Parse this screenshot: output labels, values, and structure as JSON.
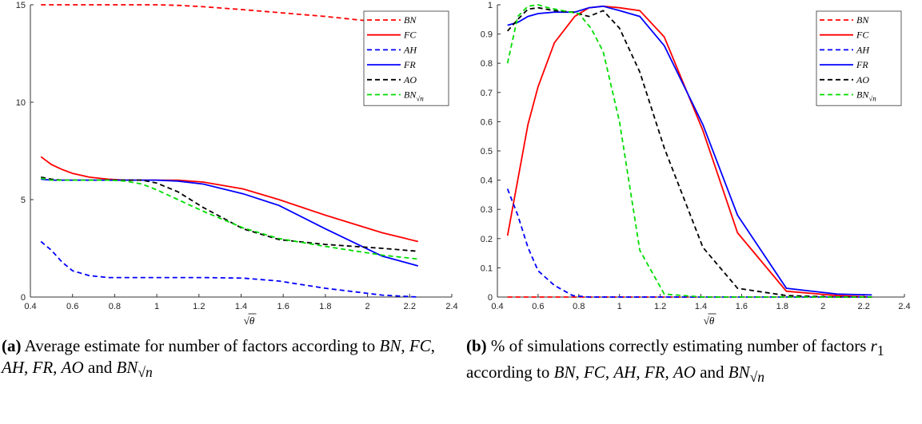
{
  "chart_data": [
    {
      "type": "line",
      "xlabel": "√θ",
      "ylabel": "",
      "xlim": [
        0.4,
        2.4
      ],
      "ylim": [
        0,
        15
      ],
      "xticks": [
        "0.4",
        "0.6",
        "0.8",
        "1",
        "1.2",
        "1.4",
        "1.6",
        "1.8",
        "2",
        "2.2",
        "2.4"
      ],
      "yticks": [
        "0",
        "5",
        "10",
        "15"
      ],
      "legend_position": "top-right",
      "grid": false,
      "x": [
        0.45,
        0.5,
        0.55,
        0.6,
        0.68,
        0.77,
        0.85,
        0.93,
        1.0,
        1.1,
        1.22,
        1.41,
        1.58,
        1.8,
        2.07,
        2.24
      ],
      "series": [
        {
          "name": "BN",
          "color": "#ff0000",
          "dash": true,
          "values": [
            15,
            15,
            15,
            15,
            15,
            15,
            15,
            15,
            15,
            14.97,
            14.9,
            14.75,
            14.6,
            14.4,
            14.1,
            14.0
          ]
        },
        {
          "name": "FC",
          "color": "#ff0000",
          "dash": false,
          "values": [
            7.2,
            6.8,
            6.55,
            6.35,
            6.15,
            6.05,
            6.0,
            6.0,
            6.0,
            6.0,
            5.9,
            5.55,
            5.0,
            4.2,
            3.3,
            2.85
          ]
        },
        {
          "name": "AH",
          "color": "#0000ff",
          "dash": true,
          "values": [
            2.85,
            2.4,
            1.8,
            1.35,
            1.1,
            1.0,
            1.0,
            1.0,
            1.0,
            1.0,
            1.0,
            0.97,
            0.82,
            0.45,
            0.1,
            0.0
          ]
        },
        {
          "name": "FR",
          "color": "#0000ff",
          "dash": false,
          "values": [
            6.05,
            6.0,
            6.0,
            6.0,
            6.0,
            6.0,
            6.0,
            6.0,
            6.0,
            5.95,
            5.8,
            5.3,
            4.7,
            3.5,
            2.1,
            1.6
          ]
        },
        {
          "name": "AO",
          "color": "#000000",
          "dash": true,
          "values": [
            6.15,
            6.05,
            6.0,
            6.0,
            6.0,
            6.0,
            6.0,
            6.0,
            5.85,
            5.4,
            4.6,
            3.5,
            2.95,
            2.7,
            2.5,
            2.35
          ]
        },
        {
          "name": "BN√n",
          "color": "#00dd00",
          "dash": true,
          "values": [
            6.1,
            6.0,
            6.0,
            6.0,
            6.0,
            6.0,
            5.95,
            5.8,
            5.5,
            5.0,
            4.4,
            3.55,
            3.0,
            2.6,
            2.15,
            1.95
          ]
        }
      ]
    },
    {
      "type": "line",
      "xlabel": "√θ",
      "ylabel": "",
      "xlim": [
        0.4,
        2.4
      ],
      "ylim": [
        0,
        1
      ],
      "xticks": [
        "0.4",
        "0.6",
        "0.8",
        "1",
        "1.2",
        "1.4",
        "1.6",
        "1.8",
        "2",
        "2.2",
        "2.4"
      ],
      "yticks": [
        "0",
        "0.1",
        "0.2",
        "0.3",
        "0.4",
        "0.5",
        "0.6",
        "0.7",
        "0.8",
        "0.9",
        "1"
      ],
      "legend_position": "top-right",
      "grid": false,
      "series": [
        {
          "name": "BN",
          "color": "#ff0000",
          "dash": true,
          "x": [
            0.45,
            2.24
          ],
          "values": [
            0,
            0
          ]
        },
        {
          "name": "FC",
          "color": "#ff0000",
          "dash": false,
          "x": [
            0.45,
            0.55,
            0.6,
            0.68,
            0.78,
            0.85,
            0.92,
            1.0,
            1.1,
            1.22,
            1.41,
            1.58,
            1.82,
            2.07,
            2.24
          ],
          "values": [
            0.21,
            0.59,
            0.72,
            0.87,
            0.96,
            0.99,
            0.995,
            0.99,
            0.98,
            0.89,
            0.57,
            0.22,
            0.02,
            0.005,
            0
          ]
        },
        {
          "name": "AH",
          "color": "#0000ff",
          "dash": true,
          "x": [
            0.45,
            0.5,
            0.55,
            0.6,
            0.68,
            0.77,
            0.85,
            1.0,
            2.24
          ],
          "values": [
            0.37,
            0.28,
            0.17,
            0.09,
            0.04,
            0.005,
            0,
            0,
            0
          ]
        },
        {
          "name": "FR",
          "color": "#0000ff",
          "dash": false,
          "x": [
            0.45,
            0.5,
            0.55,
            0.6,
            0.68,
            0.78,
            0.85,
            0.92,
            1.0,
            1.1,
            1.22,
            1.41,
            1.58,
            1.82,
            2.07,
            2.24
          ],
          "values": [
            0.93,
            0.94,
            0.96,
            0.97,
            0.975,
            0.975,
            0.99,
            0.995,
            0.98,
            0.96,
            0.86,
            0.59,
            0.28,
            0.03,
            0.01,
            0.007
          ]
        },
        {
          "name": "AO",
          "color": "#000000",
          "dash": true,
          "x": [
            0.45,
            0.5,
            0.55,
            0.6,
            0.68,
            0.77,
            0.85,
            0.92,
            1.0,
            1.1,
            1.22,
            1.41,
            1.58,
            1.82,
            2.07,
            2.24
          ],
          "values": [
            0.91,
            0.95,
            0.985,
            0.99,
            0.98,
            0.975,
            0.96,
            0.98,
            0.92,
            0.77,
            0.51,
            0.17,
            0.03,
            0.005,
            0,
            0
          ]
        },
        {
          "name": "BN√n",
          "color": "#00dd00",
          "dash": true,
          "x": [
            0.45,
            0.5,
            0.55,
            0.6,
            0.65,
            0.72,
            0.8,
            0.86,
            0.92,
            1.0,
            1.1,
            1.22,
            1.41,
            2.24
          ],
          "values": [
            0.8,
            0.96,
            0.995,
            1.0,
            0.99,
            0.98,
            0.97,
            0.92,
            0.84,
            0.6,
            0.16,
            0.01,
            0,
            0
          ]
        }
      ]
    }
  ],
  "captions": {
    "a": {
      "label": "(a)",
      "text": "Average estimate for number of factors according to BN, FC, AH, FR, AO and BN√n"
    },
    "b": {
      "label": "(b)",
      "text": "% of simulations correctly estimating number of factors r1 according to BN, FC, AH, FR, AO and BN√n"
    }
  }
}
